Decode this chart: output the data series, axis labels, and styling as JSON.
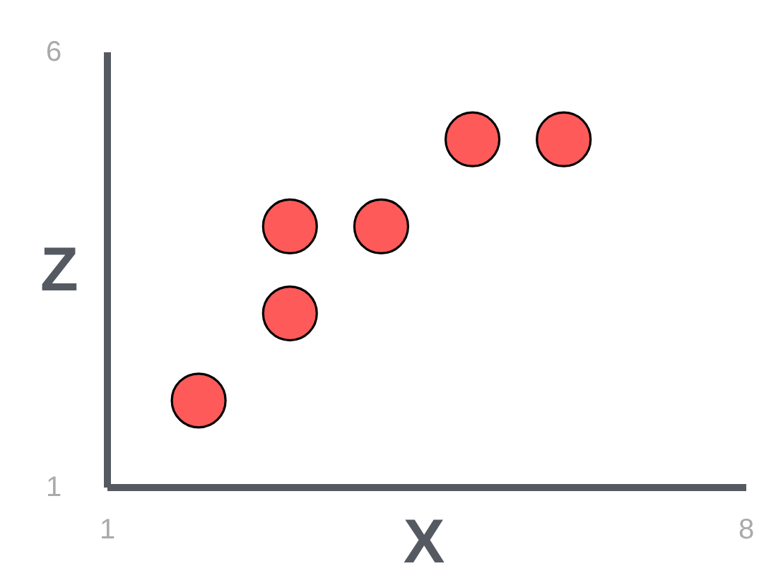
{
  "chart_data": {
    "type": "scatter",
    "xlabel": "X",
    "ylabel": "Z",
    "xlim": [
      1,
      8
    ],
    "ylim": [
      1,
      6
    ],
    "xticks": [
      1,
      8
    ],
    "yticks": [
      1,
      6
    ],
    "grid": false,
    "marker": "circle",
    "series": [
      {
        "color": "#ff5a5a",
        "x": [
          2,
          3,
          3,
          4,
          5,
          6
        ],
        "values": [
          2,
          3,
          4,
          4,
          5,
          5
        ]
      }
    ]
  }
}
